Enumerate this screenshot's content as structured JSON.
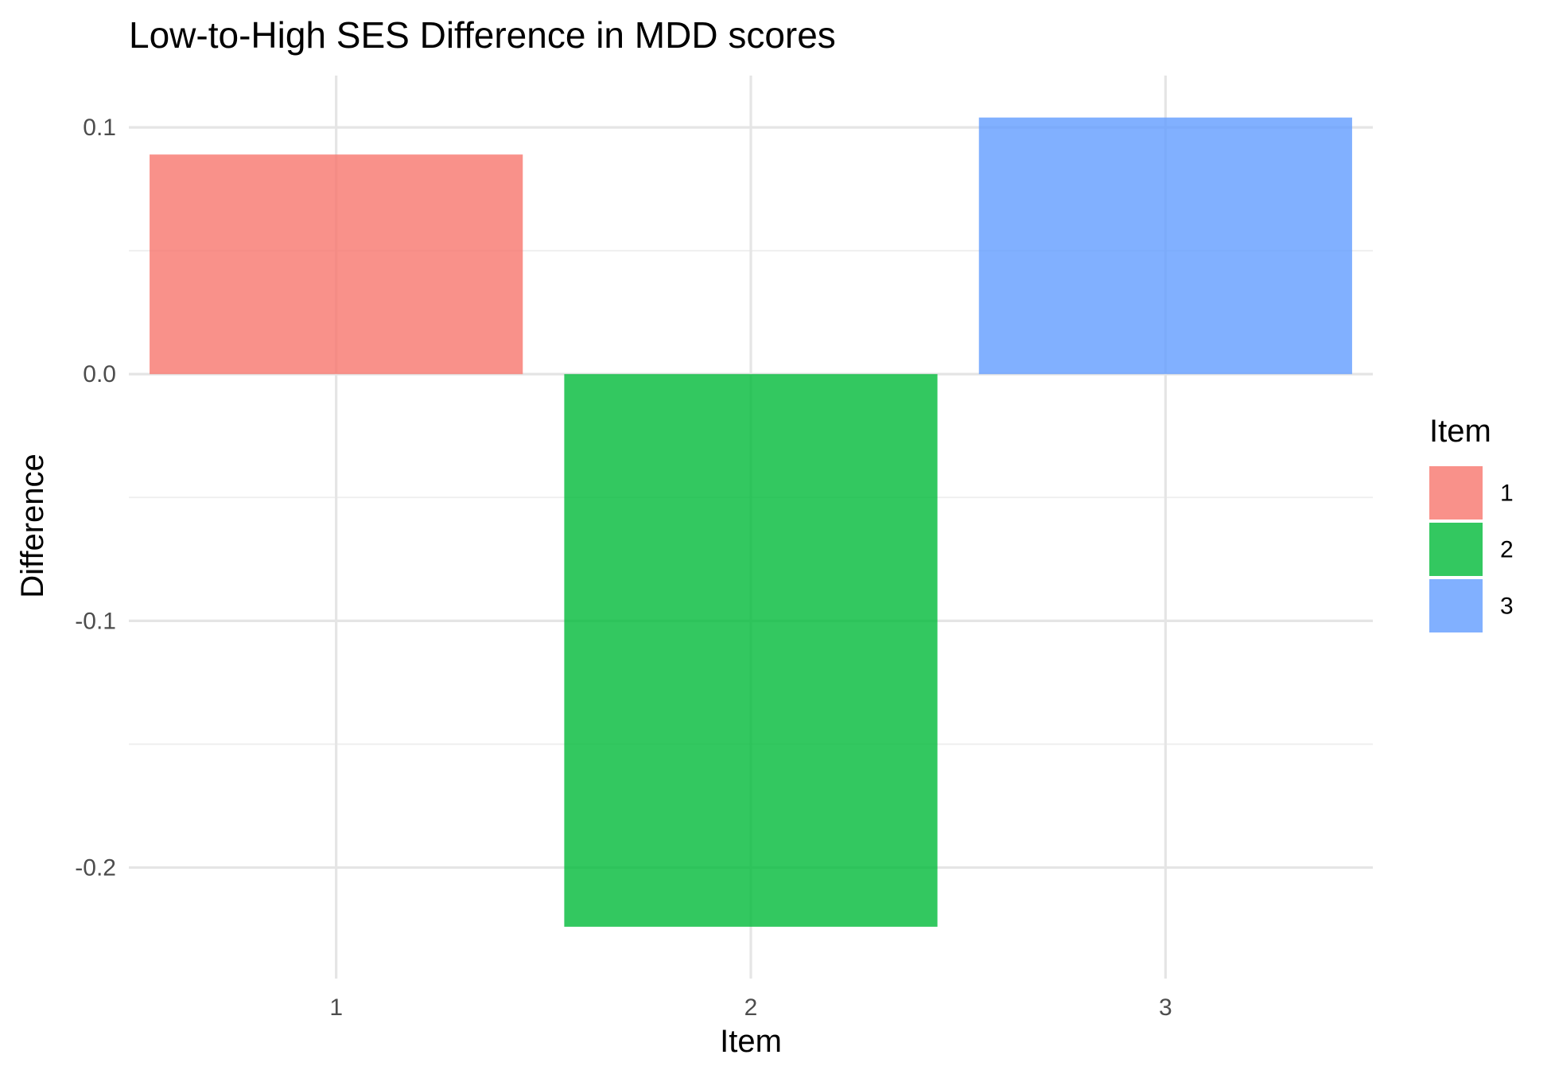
{
  "chart_data": {
    "type": "bar",
    "title": "Low-to-High SES Difference in MDD scores",
    "xlabel": "Item",
    "ylabel": "Difference",
    "categories": [
      "1",
      "2",
      "3"
    ],
    "values": [
      0.089,
      -0.224,
      0.104
    ],
    "colors": [
      "#F8766D",
      "#00BA38",
      "#619CFF"
    ],
    "bar_opacity": 0.8,
    "ylim": [
      -0.245,
      0.121
    ],
    "y_ticks": [
      0.1,
      0.0,
      -0.1,
      -0.2
    ],
    "y_tick_labels": [
      "0.1",
      "0.0",
      "-0.1",
      "-0.2"
    ],
    "grid": true,
    "legend": {
      "title": "Item",
      "position": "right",
      "entries": [
        "1",
        "2",
        "3"
      ]
    }
  }
}
